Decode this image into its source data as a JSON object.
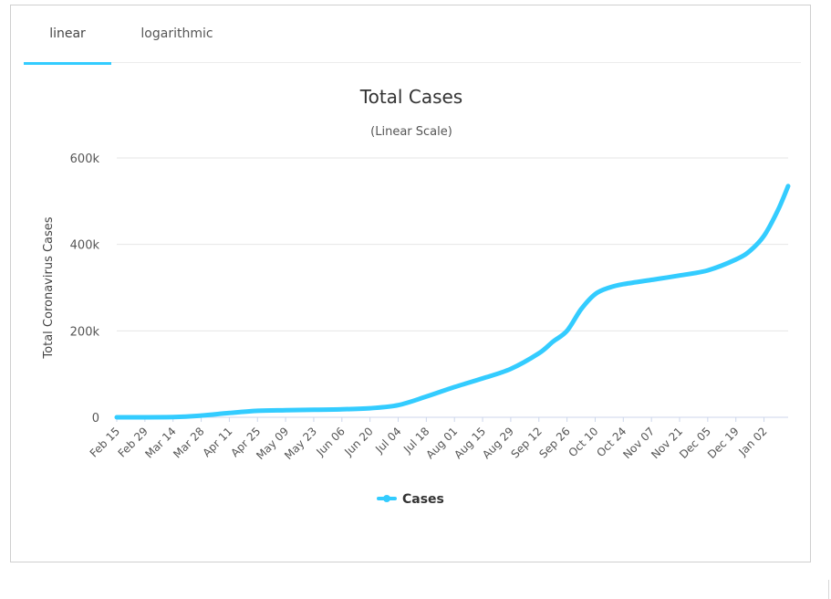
{
  "tabs": [
    {
      "label": "linear",
      "active": true
    },
    {
      "label": "logarithmic",
      "active": false
    }
  ],
  "accent_color": "#33ccff",
  "chart_data": {
    "type": "line",
    "title": "Total Cases",
    "subtitle": "(Linear Scale)",
    "xlabel": "",
    "ylabel": "Total Coronavirus Cases",
    "ylim": [
      0,
      600000
    ],
    "y_ticks": [
      0,
      200000,
      400000,
      600000
    ],
    "y_tick_labels": [
      "0",
      "200k",
      "400k",
      "600k"
    ],
    "grid": true,
    "legend": "bottom-center",
    "x_tick_labels": [
      "Feb 15",
      "Feb 29",
      "Mar 14",
      "Mar 28",
      "Apr 11",
      "Apr 25",
      "May 09",
      "May 23",
      "Jun 06",
      "Jun 20",
      "Jul 04",
      "Jul 18",
      "Aug 01",
      "Aug 15",
      "Aug 29",
      "Sep 12",
      "Sep 26",
      "Oct 10",
      "Oct 24",
      "Nov 07",
      "Nov 21",
      "Dec 05",
      "Dec 19",
      "Jan 02"
    ],
    "x_start": "2020-02-15",
    "x_end": "2021-01-14",
    "series": [
      {
        "name": "Cases",
        "color": "#33ccff",
        "points": [
          [
            "2020-02-15",
            0
          ],
          [
            "2020-03-14",
            500
          ],
          [
            "2020-03-28",
            4000
          ],
          [
            "2020-04-11",
            10000
          ],
          [
            "2020-04-25",
            15000
          ],
          [
            "2020-05-09",
            16500
          ],
          [
            "2020-05-23",
            17500
          ],
          [
            "2020-06-06",
            18500
          ],
          [
            "2020-06-20",
            21000
          ],
          [
            "2020-07-04",
            28000
          ],
          [
            "2020-07-18",
            48000
          ],
          [
            "2020-08-01",
            70000
          ],
          [
            "2020-08-15",
            90000
          ],
          [
            "2020-08-29",
            112000
          ],
          [
            "2020-09-12",
            148000
          ],
          [
            "2020-09-19",
            175000
          ],
          [
            "2020-09-26",
            200000
          ],
          [
            "2020-10-03",
            250000
          ],
          [
            "2020-10-10",
            285000
          ],
          [
            "2020-10-17",
            300000
          ],
          [
            "2020-10-24",
            308000
          ],
          [
            "2020-11-07",
            318000
          ],
          [
            "2020-11-21",
            328000
          ],
          [
            "2020-12-05",
            340000
          ],
          [
            "2020-12-19",
            365000
          ],
          [
            "2020-12-26",
            385000
          ],
          [
            "2021-01-02",
            420000
          ],
          [
            "2021-01-09",
            480000
          ],
          [
            "2021-01-14",
            535000
          ]
        ]
      }
    ]
  }
}
